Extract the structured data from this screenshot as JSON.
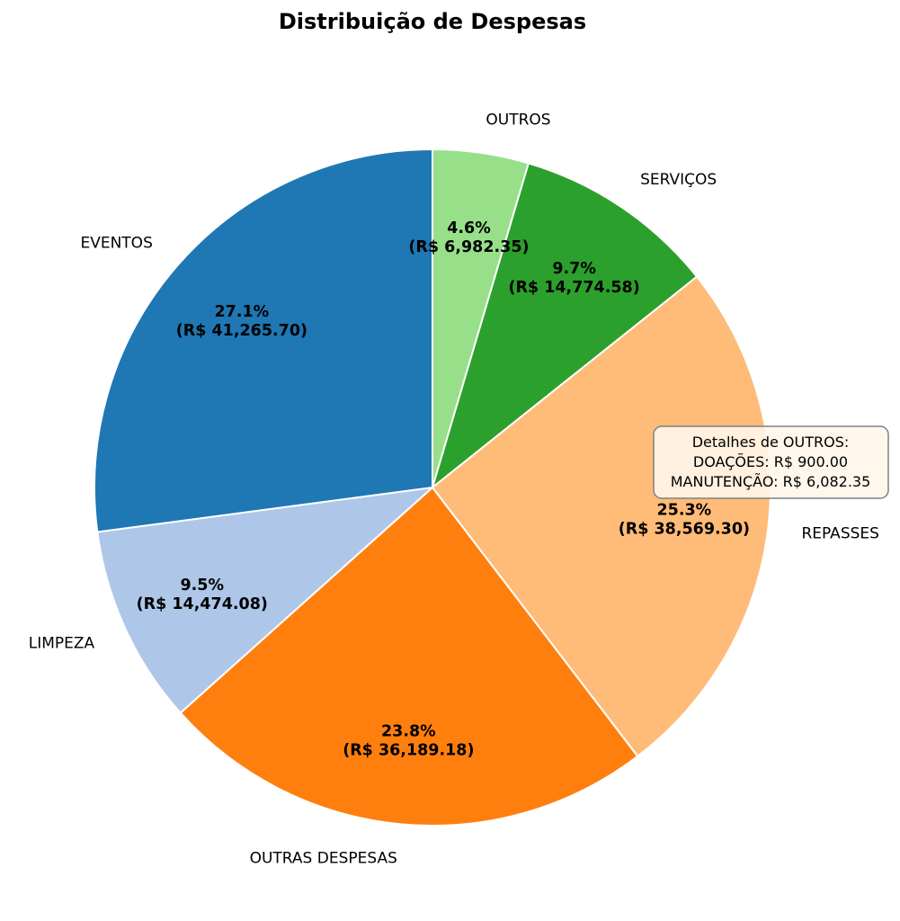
{
  "chart_data": {
    "type": "pie",
    "title": "Distribuição de Despesas",
    "start_angle_deg": 90,
    "direction": "clockwise",
    "slices": [
      {
        "label": "OUTROS",
        "value": 6982.35,
        "pct_text": "4.6%",
        "value_text": "(R$ 6,982.35)",
        "color": "#98df8a"
      },
      {
        "label": "SERVIÇOS",
        "value": 14774.58,
        "pct_text": "9.7%",
        "value_text": "(R$ 14,774.58)",
        "color": "#2ca02c"
      },
      {
        "label": "REPASSES",
        "value": 38569.3,
        "pct_text": "25.3%",
        "value_text": "(R$ 38,569.30)",
        "color": "#ffbb78"
      },
      {
        "label": "OUTRAS DESPESAS",
        "value": 36189.18,
        "pct_text": "23.8%",
        "value_text": "(R$ 36,189.18)",
        "color": "#ff7f0e"
      },
      {
        "label": "LIMPEZA",
        "value": 14474.08,
        "pct_text": "9.5%",
        "value_text": "(R$ 14,474.08)",
        "color": "#aec7e8"
      },
      {
        "label": "EVENTOS",
        "value": 41265.7,
        "pct_text": "27.1%",
        "value_text": "(R$ 41,265.70)",
        "color": "#1f77b4"
      }
    ],
    "annotation": {
      "lines": [
        "Detalhes de OUTROS:",
        "DOAÇÕES: R$ 900.00",
        "MANUTENÇÃO: R$ 6,082.35"
      ]
    }
  }
}
